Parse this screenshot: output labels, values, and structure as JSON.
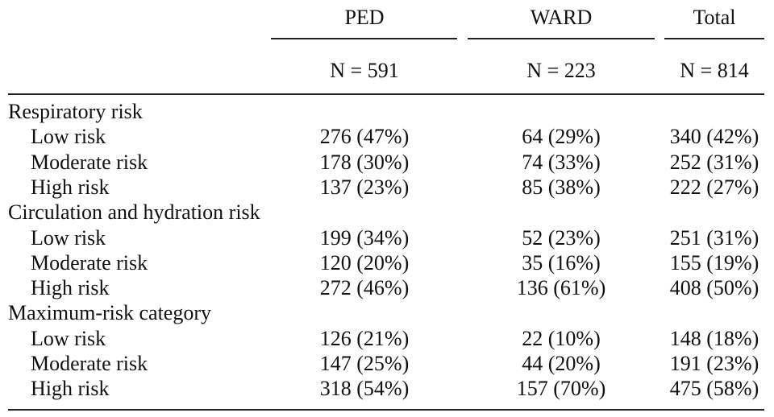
{
  "header": {
    "columns": [
      "PED",
      "WARD",
      "Total"
    ],
    "n": [
      "N = 591",
      "N = 223",
      "N = 814"
    ]
  },
  "sections": [
    {
      "title": "Respiratory risk",
      "rows": [
        {
          "label": "Low risk",
          "cells": [
            "276 (47%)",
            "64 (29%)",
            "340 (42%)"
          ]
        },
        {
          "label": "Moderate risk",
          "cells": [
            "178 (30%)",
            "74 (33%)",
            "252 (31%)"
          ]
        },
        {
          "label": "High risk",
          "cells": [
            "137 (23%)",
            "85 (38%)",
            "222 (27%)"
          ]
        }
      ]
    },
    {
      "title": "Circulation and hydration risk",
      "rows": [
        {
          "label": "Low risk",
          "cells": [
            "199 (34%)",
            "52 (23%)",
            "251 (31%)"
          ]
        },
        {
          "label": "Moderate risk",
          "cells": [
            "120 (20%)",
            "35 (16%)",
            "155 (19%)"
          ]
        },
        {
          "label": "High risk",
          "cells": [
            "272 (46%)",
            "136 (61%)",
            "408 (50%)"
          ]
        }
      ]
    },
    {
      "title": "Maximum-risk category",
      "rows": [
        {
          "label": "Low risk",
          "cells": [
            "126 (21%)",
            "22 (10%)",
            "148 (18%)"
          ]
        },
        {
          "label": "Moderate risk",
          "cells": [
            "147 (25%)",
            "44 (20%)",
            "191 (23%)"
          ]
        },
        {
          "label": "High risk",
          "cells": [
            "318 (54%)",
            "157 (70%)",
            "475 (58%)"
          ]
        }
      ]
    }
  ]
}
